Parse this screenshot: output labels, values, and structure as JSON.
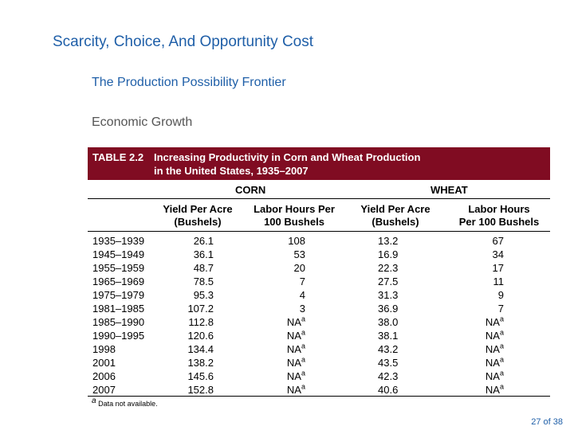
{
  "slide": {
    "title": "Scarcity, Choice, And Opportunity Cost",
    "subtitle1": "The Production Possibility Frontier",
    "subtitle2": "Economic Growth",
    "page": "27 of 38"
  },
  "table": {
    "number": "TABLE 2.2",
    "title_line1": "Increasing Productivity in Corn and Wheat Production",
    "title_line2": "in the United States, 1935–2007",
    "group_corn": "CORN",
    "group_wheat": "WHEAT",
    "col_yield_line1": "Yield Per Acre",
    "col_yield_line2": "(Bushels)",
    "col_labor_corn_line1": "Labor Hours Per",
    "col_labor_corn_line2": "100 Bushels",
    "col_yield_wheat_line1": "Yield Per Acre",
    "col_yield_wheat_line2": "(Bushels)",
    "col_labor_wheat_line1": "Labor Hours",
    "col_labor_wheat_line2": "Per 100 Bushels",
    "rows": [
      {
        "period": "1935–1939",
        "corn_yield": "26.1",
        "corn_labor": "108",
        "corn_sup": "",
        "wheat_yield": "13.2",
        "wheat_labor": "67",
        "wheat_sup": ""
      },
      {
        "period": "1945–1949",
        "corn_yield": "36.1",
        "corn_labor": "53",
        "corn_sup": "",
        "wheat_yield": "16.9",
        "wheat_labor": "34",
        "wheat_sup": ""
      },
      {
        "period": "1955–1959",
        "corn_yield": "48.7",
        "corn_labor": "20",
        "corn_sup": "",
        "wheat_yield": "22.3",
        "wheat_labor": "17",
        "wheat_sup": ""
      },
      {
        "period": "1965–1969",
        "corn_yield": "78.5",
        "corn_labor": "7",
        "corn_sup": "",
        "wheat_yield": "27.5",
        "wheat_labor": "11",
        "wheat_sup": ""
      },
      {
        "period": "1975–1979",
        "corn_yield": "95.3",
        "corn_labor": "4",
        "corn_sup": "",
        "wheat_yield": "31.3",
        "wheat_labor": "9",
        "wheat_sup": ""
      },
      {
        "period": "1981–1985",
        "corn_yield": "107.2",
        "corn_labor": "3",
        "corn_sup": "",
        "wheat_yield": "36.9",
        "wheat_labor": "7",
        "wheat_sup": ""
      },
      {
        "period": "1985–1990",
        "corn_yield": "112.8",
        "corn_labor": "NA",
        "corn_sup": "a",
        "wheat_yield": "38.0",
        "wheat_labor": "NA",
        "wheat_sup": "a"
      },
      {
        "period": "1990–1995",
        "corn_yield": "120.6",
        "corn_labor": "NA",
        "corn_sup": "a",
        "wheat_yield": "38.1",
        "wheat_labor": "NA",
        "wheat_sup": "a"
      },
      {
        "period": "1998",
        "corn_yield": "134.4",
        "corn_labor": "NA",
        "corn_sup": "a",
        "wheat_yield": "43.2",
        "wheat_labor": "NA",
        "wheat_sup": "a"
      },
      {
        "period": "2001",
        "corn_yield": "138.2",
        "corn_labor": "NA",
        "corn_sup": "a",
        "wheat_yield": "43.5",
        "wheat_labor": "NA",
        "wheat_sup": "a"
      },
      {
        "period": "2006",
        "corn_yield": "145.6",
        "corn_labor": "NA",
        "corn_sup": "a",
        "wheat_yield": "42.3",
        "wheat_labor": "NA",
        "wheat_sup": "a"
      },
      {
        "period": "2007",
        "corn_yield": "152.8",
        "corn_labor": "NA",
        "corn_sup": "a",
        "wheat_yield": "40.6",
        "wheat_labor": "NA",
        "wheat_sup": "a"
      }
    ],
    "footnote_mark": "a",
    "footnote_text": "Data not available."
  }
}
